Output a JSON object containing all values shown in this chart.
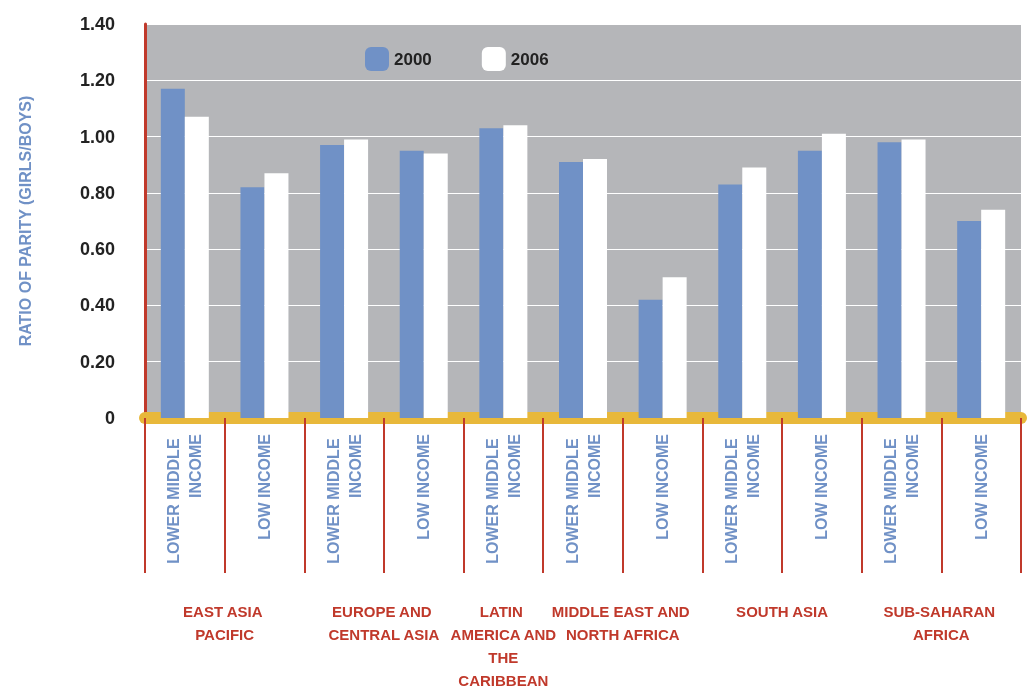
{
  "chart_data": {
    "type": "bar",
    "ylabel": "RATIO OF PARITY (GIRLS/BOYS)",
    "categories": [
      "LOWER MIDDLE INCOME",
      "LOW INCOME",
      "LOWER MIDDLE INCOME",
      "LOW INCOME",
      "LOWER MIDDLE INCOME",
      "LOWER MIDDLE INCOME",
      "LOW INCOME",
      "LOWER MIDDLE INCOME",
      "LOW INCOME",
      "LOWER MIDDLE INCOME",
      "LOW INCOME"
    ],
    "series": [
      {
        "name": "2000",
        "color": "#7091c6",
        "values": [
          1.17,
          0.82,
          0.97,
          0.95,
          1.03,
          0.91,
          0.42,
          0.83,
          0.95,
          0.98,
          0.7
        ]
      },
      {
        "name": "2006",
        "color": "#ffffff",
        "values": [
          1.07,
          0.87,
          0.99,
          0.94,
          1.04,
          0.92,
          0.5,
          0.89,
          1.01,
          0.99,
          0.74
        ]
      }
    ],
    "annotations": [
      "EAST ASIA PACIFIC",
      "EUROPE AND CENTRAL ASIA",
      "LATIN AMERICA AND THE CARIBBEAN",
      "MIDDLE EAST AND NORTH AFRICA",
      "SOUTH ASIA",
      "SUB-SAHARAN AFRICA"
    ],
    "ylim": [
      0,
      1.4
    ],
    "yticks": [
      0,
      {
        "value": 0.2,
        "label": "0.20"
      },
      {
        "value": 0.4,
        "label": "0.40"
      },
      {
        "value": 0.6,
        "label": "0.60"
      },
      {
        "value": 0.8,
        "label": "0.80"
      },
      {
        "value": 1.0,
        "label": "1.00"
      },
      {
        "value": 1.2,
        "label": "1.20"
      },
      {
        "value": 1.4,
        "label": "1.40"
      }
    ],
    "grid": "y",
    "legend": "top"
  }
}
